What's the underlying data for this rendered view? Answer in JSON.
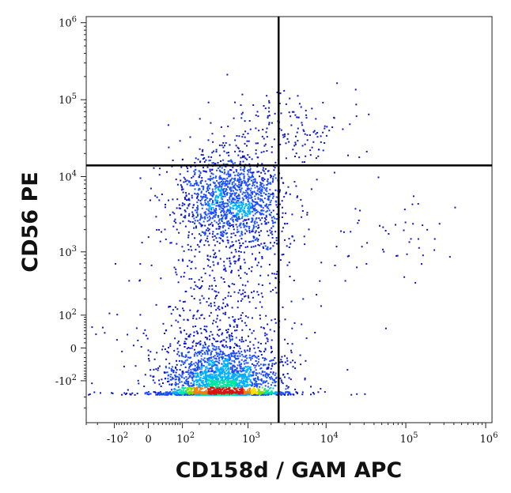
{
  "chart_data": {
    "type": "scatter",
    "subtype": "flow-cytometry-density-dot-plot",
    "xlabel": "CD158d / GAM APC",
    "ylabel": "CD56 PE",
    "x_scale": "biexponential",
    "y_scale": "biexponential",
    "xlim": [
      -300,
      1200000
    ],
    "ylim": [
      -500,
      1200000
    ],
    "x_ticks": [
      {
        "value": -100,
        "label": "-10",
        "exp": "2"
      },
      {
        "value": 0,
        "label": "0",
        "exp": ""
      },
      {
        "value": 100,
        "label": "10",
        "exp": "2"
      },
      {
        "value": 1000,
        "label": "10",
        "exp": "3"
      },
      {
        "value": 10000,
        "label": "10",
        "exp": "4"
      },
      {
        "value": 100000,
        "label": "10",
        "exp": "5"
      },
      {
        "value": 1000000,
        "label": "10",
        "exp": "6"
      }
    ],
    "y_ticks": [
      {
        "value": -100,
        "label": "-10",
        "exp": "2"
      },
      {
        "value": 0,
        "label": "0",
        "exp": ""
      },
      {
        "value": 100,
        "label": "10",
        "exp": "2"
      },
      {
        "value": 1000,
        "label": "10",
        "exp": "3"
      },
      {
        "value": 10000,
        "label": "10",
        "exp": "4"
      },
      {
        "value": 100000,
        "label": "10",
        "exp": "5"
      },
      {
        "value": 1000000,
        "label": "10",
        "exp": "6"
      }
    ],
    "quadrant_gates": {
      "x": 2500,
      "y": 14000
    },
    "populations": [
      {
        "name": "",
        "center": [
          450,
          -150
        ],
        "spread_log": [
          0.35,
          0.3
        ],
        "weight": 0.55
      },
      {
        "name": "",
        "center": [
          600,
          5000
        ],
        "spread_log": [
          0.35,
          0.28
        ],
        "weight": 0.25
      },
      {
        "name": "",
        "center": [
          500,
          500
        ],
        "spread_log": [
          0.4,
          0.9
        ],
        "weight": 0.12
      },
      {
        "name": "",
        "center": [
          3500,
          45000
        ],
        "spread_log": [
          0.35,
          0.25
        ],
        "weight": 0.03
      },
      {
        "name": "",
        "center": [
          60000,
          1800
        ],
        "spread_log": [
          0.5,
          0.35
        ],
        "weight": 0.01
      },
      {
        "name": "",
        "center": [
          150,
          -100
        ],
        "spread_log": [
          0.9,
          0.8
        ],
        "weight": 0.04
      }
    ],
    "density_colormap": [
      "#0a17c8",
      "#1a4cff",
      "#00b0ff",
      "#00e5a0",
      "#7ee000",
      "#ffe000",
      "#ff7a00",
      "#e01010"
    ],
    "grid": false,
    "legend": "none"
  }
}
